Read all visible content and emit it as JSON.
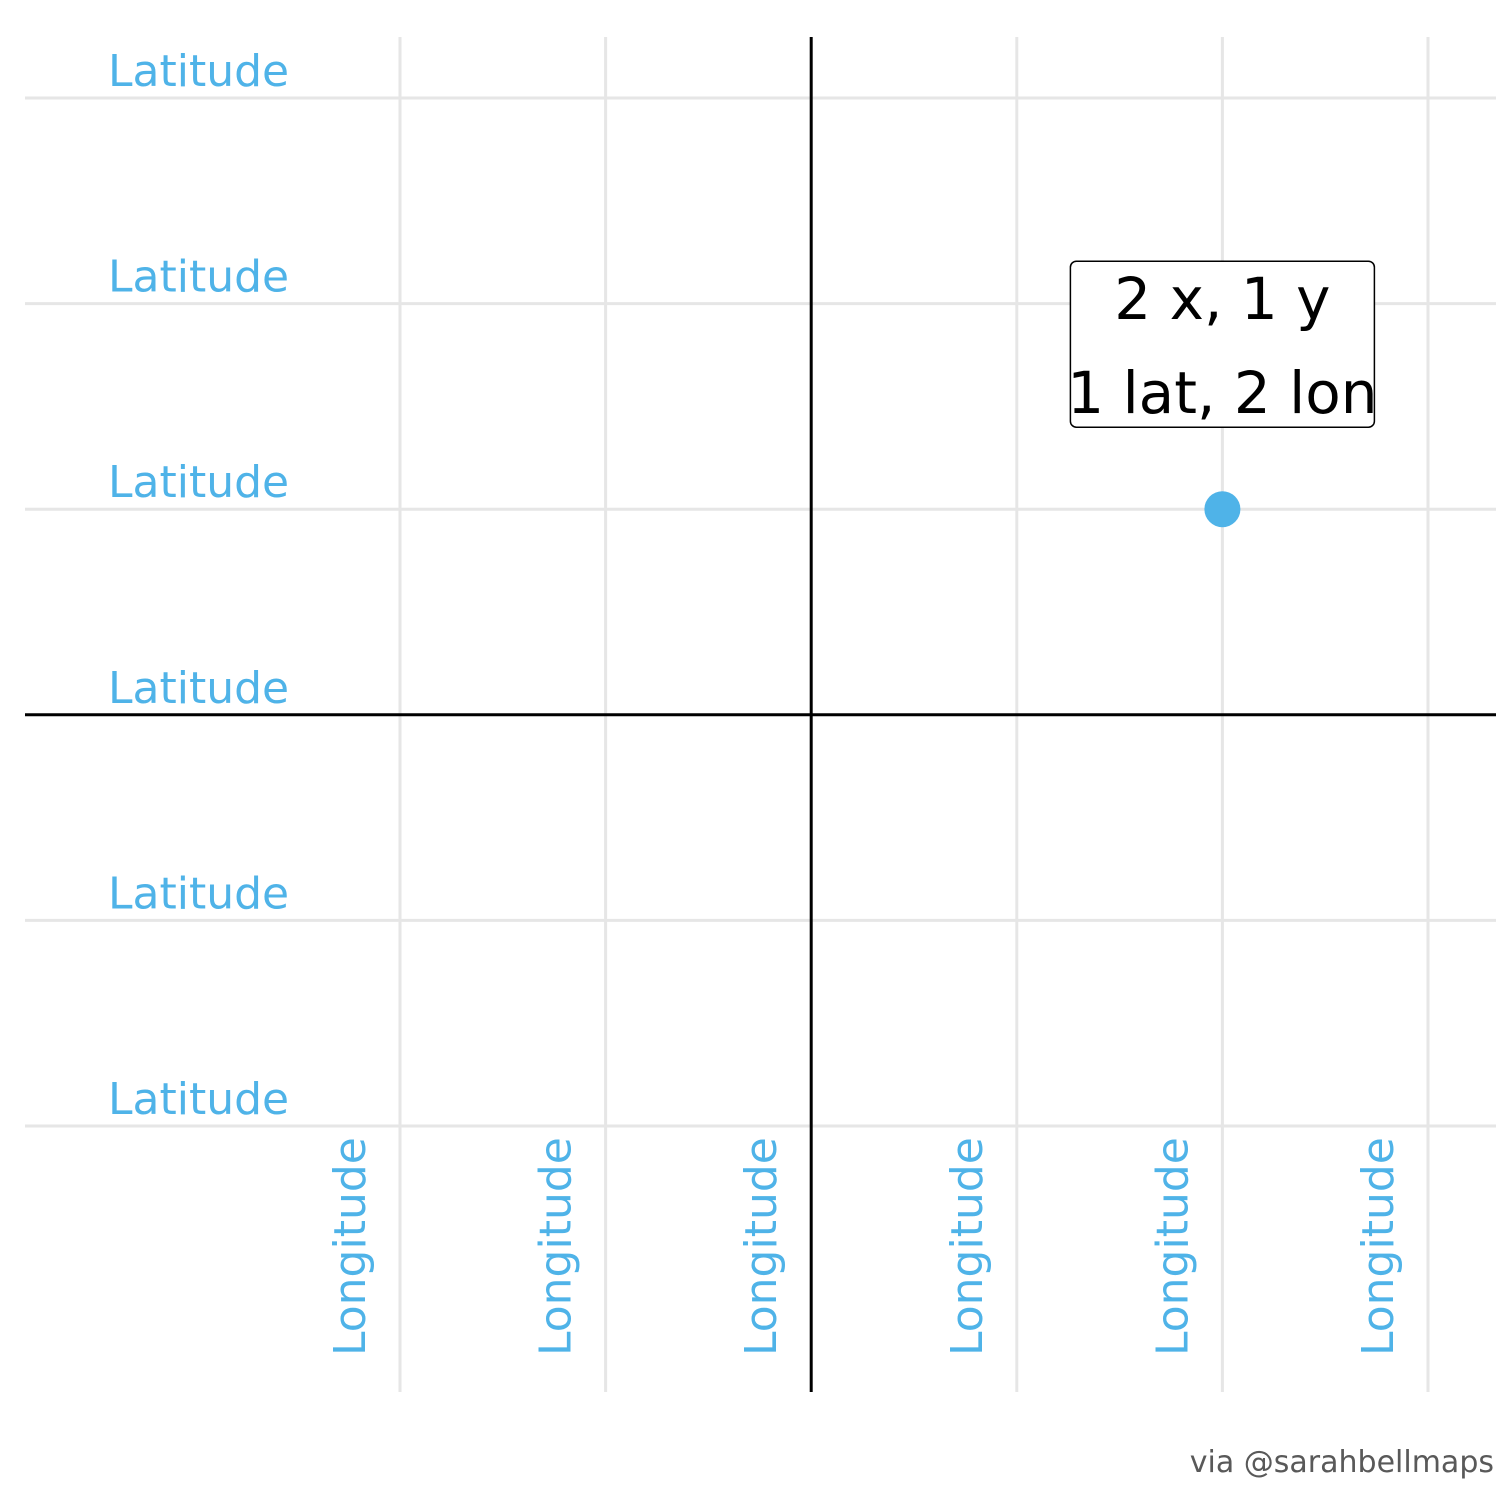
{
  "chart_data": {
    "type": "scatter",
    "xlim": [
      -2,
      3
    ],
    "ylim": [
      -2,
      3
    ],
    "x_ticks": [
      -2,
      -1,
      0,
      1,
      2,
      3
    ],
    "y_ticks": [
      -2,
      -1,
      0,
      1,
      2,
      3
    ],
    "x_tick_label": "Longitude",
    "y_tick_label": "Latitude",
    "points": [
      {
        "x": 2,
        "y": 1
      }
    ],
    "annotation": {
      "x": 2,
      "y": 1,
      "lines": [
        "2 x, 1 y",
        "1 lat, 2 lon"
      ]
    },
    "caption": "via @sarahbellmaps",
    "grid": true,
    "zero_axes": true
  },
  "colors": {
    "accent": "#4fb3e8",
    "grid": "#e6e6e6",
    "axis": "#000000",
    "caption": "#595959"
  }
}
